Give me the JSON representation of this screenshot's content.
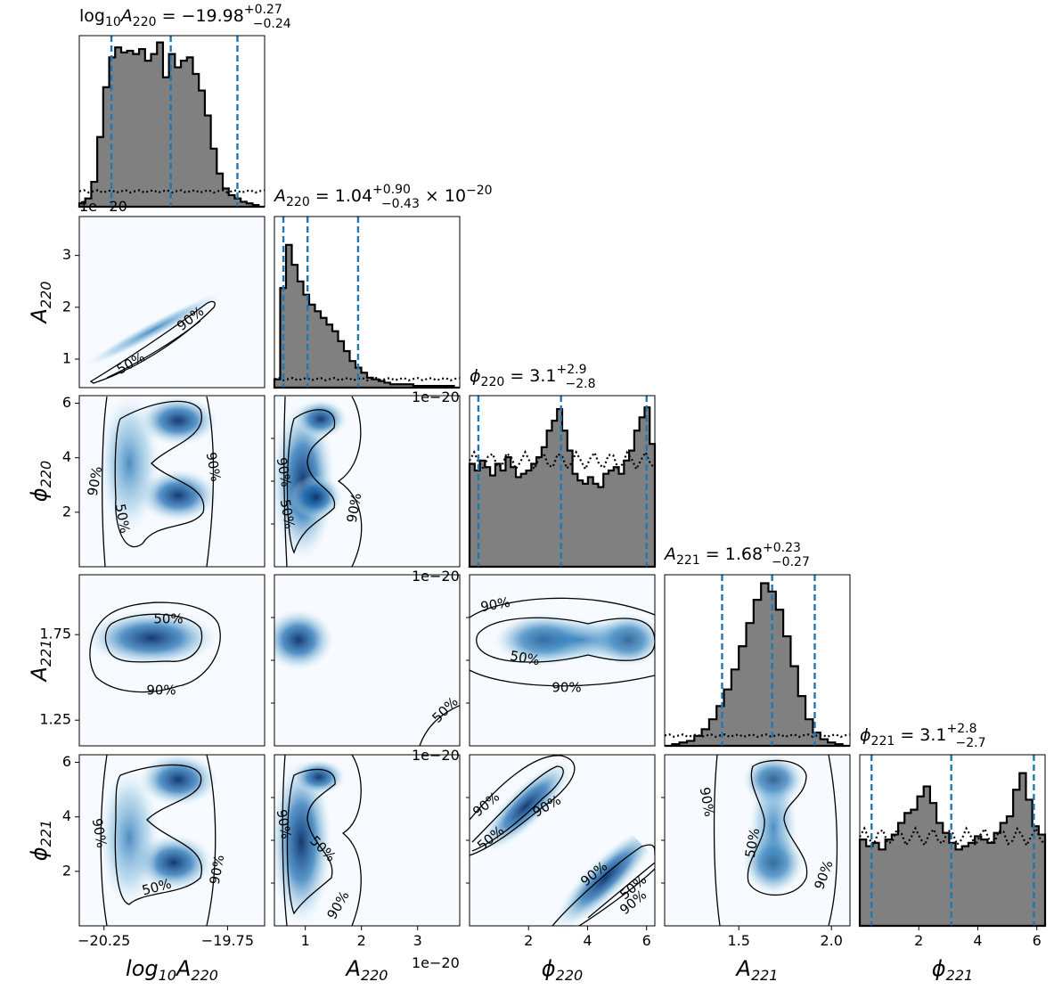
{
  "chart_data": {
    "type": "corner",
    "parameters": [
      {
        "key": "logA220",
        "label_html": "log<tspan font-size='16' dy='5'>10</tspan><tspan dy='-5'>A</tspan><tspan font-size='16' dy='5'>220</tspan>",
        "range": [
          -20.35,
          -19.6
        ]
      },
      {
        "key": "A220",
        "label_html": "A<tspan font-size='16' dy='5'>220</tspan>",
        "range": [
          0.45,
          3.75
        ]
      },
      {
        "key": "phi220",
        "label_html": "ϕ<tspan font-size='16' dy='5'>220</tspan>",
        "range": [
          0.0,
          6.28
        ]
      },
      {
        "key": "A221",
        "label_html": "A<tspan font-size='16' dy='5'>221</tspan>",
        "range": [
          1.1,
          2.1
        ]
      },
      {
        "key": "phi221",
        "label_html": "ϕ<tspan font-size='16' dy='5'>221</tspan>",
        "range": [
          0.0,
          6.28
        ]
      }
    ],
    "titles": [
      {
        "text": "log10A220 = −19.98 +0.27 −0.24",
        "median": -19.98,
        "plus": 0.27,
        "minus": 0.24
      },
      {
        "text": "A220 = 1.04 +0.90 −0.43 × 10−20",
        "median": 1.04,
        "plus": 0.9,
        "minus": 0.43,
        "scale": "1e-20"
      },
      {
        "text": "ϕ220 = 3.1 +2.9 −2.8",
        "median": 3.1,
        "plus": 2.9,
        "minus": 2.8
      },
      {
        "text": "A221 = 1.68 +0.23 −0.27",
        "median": 1.68,
        "plus": 0.23,
        "minus": 0.27
      },
      {
        "text": "ϕ221 = 3.1 +2.8 −2.7",
        "median": 3.1,
        "plus": 2.8,
        "minus": 2.7
      }
    ],
    "quantile_lines": [
      [
        -20.22,
        -19.98,
        -19.71
      ],
      [
        0.61,
        1.04,
        1.94
      ],
      [
        0.3,
        3.1,
        6.0
      ],
      [
        1.41,
        1.68,
        1.91
      ],
      [
        0.4,
        3.1,
        5.9
      ]
    ],
    "histograms": [
      [
        0.02,
        0.05,
        0.15,
        0.42,
        0.72,
        0.9,
        0.96,
        0.93,
        0.94,
        0.92,
        0.95,
        0.88,
        0.92,
        0.99,
        0.78,
        0.92,
        0.84,
        0.88,
        0.9,
        0.8,
        0.7,
        0.55,
        0.35,
        0.2,
        0.11,
        0.07,
        0.05,
        0.03,
        0.02,
        0.01,
        0.0
      ],
      [
        0.05,
        0.6,
        0.86,
        0.74,
        0.64,
        0.56,
        0.5,
        0.46,
        0.42,
        0.38,
        0.34,
        0.28,
        0.22,
        0.16,
        0.12,
        0.09,
        0.06,
        0.05,
        0.04,
        0.03,
        0.02,
        0.02,
        0.02,
        0.02,
        0.01,
        0.01,
        0.01,
        0.01,
        0.01,
        0.01,
        0.01,
        0.0
      ],
      [
        0.62,
        0.58,
        0.64,
        0.6,
        0.55,
        0.62,
        0.58,
        0.66,
        0.6,
        0.54,
        0.56,
        0.58,
        0.62,
        0.66,
        0.72,
        0.82,
        0.88,
        0.95,
        0.82,
        0.7,
        0.56,
        0.52,
        0.5,
        0.54,
        0.5,
        0.48,
        0.56,
        0.58,
        0.6,
        0.56,
        0.64,
        0.7,
        0.82,
        0.9,
        0.96,
        0.74
      ],
      [
        0.0,
        0.01,
        0.02,
        0.03,
        0.06,
        0.1,
        0.16,
        0.24,
        0.34,
        0.46,
        0.6,
        0.74,
        0.88,
        0.98,
        0.93,
        0.82,
        0.66,
        0.48,
        0.3,
        0.16,
        0.08,
        0.04,
        0.02,
        0.01,
        0.0
      ],
      [
        0.52,
        0.48,
        0.5,
        0.46,
        0.52,
        0.55,
        0.62,
        0.68,
        0.7,
        0.78,
        0.84,
        0.74,
        0.62,
        0.56,
        0.5,
        0.46,
        0.48,
        0.5,
        0.54,
        0.52,
        0.5,
        0.56,
        0.62,
        0.66,
        0.82,
        0.92,
        0.76,
        0.6,
        0.55
      ]
    ],
    "prior_histograms_note": "dotted black lines show approximately flat priors",
    "prior_levels": [
      0.09,
      0.05,
      0.62,
      0.06,
      0.52
    ],
    "contour_levels": [
      "50%",
      "90%"
    ],
    "ticks": {
      "A220_y": [
        "1",
        "2",
        "3"
      ],
      "phi220_y": [
        "2",
        "4",
        "6"
      ],
      "A221_y": [
        "1.25",
        "1.75"
      ],
      "phi221_y": [
        "2",
        "4",
        "6"
      ],
      "logA220_x": [
        "−20.25",
        "−19.75"
      ],
      "A220_x": [
        "1",
        "2",
        "3"
      ],
      "phi220_x": [
        "2",
        "4",
        "6"
      ],
      "A221_x": [
        "1.5",
        "2.0"
      ],
      "phi221_x": [
        "2",
        "4",
        "6"
      ]
    },
    "offset_text": "1e−20",
    "offset_text_partial": "−20"
  }
}
